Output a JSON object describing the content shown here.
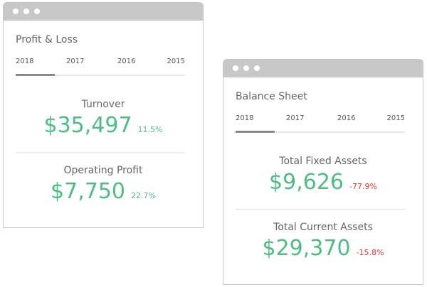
{
  "windows": [
    {
      "title": "Profit & Loss",
      "tabs": [
        "2018",
        "2017",
        "2016",
        "2015"
      ],
      "active_tab": "2018",
      "metrics": [
        {
          "label": "Turnover",
          "value": "$35,497",
          "change": "11.5%",
          "trend": "up"
        },
        {
          "label": "Operating Profit",
          "value": "$7,750",
          "change": "22.7%",
          "trend": "up"
        }
      ]
    },
    {
      "title": "Balance Sheet",
      "tabs": [
        "2018",
        "2017",
        "2016",
        "2015"
      ],
      "active_tab": "2018",
      "metrics": [
        {
          "label": "Total Fixed Assets",
          "value": "$9,626",
          "change": "-77.9%",
          "trend": "down"
        },
        {
          "label": "Total Current Assets",
          "value": "$29,370",
          "change": "-15.8%",
          "trend": "down"
        }
      ]
    }
  ],
  "colors": {
    "positive": "#4cbe84",
    "negative": "#e53935",
    "chrome": "#c8c8c8"
  }
}
